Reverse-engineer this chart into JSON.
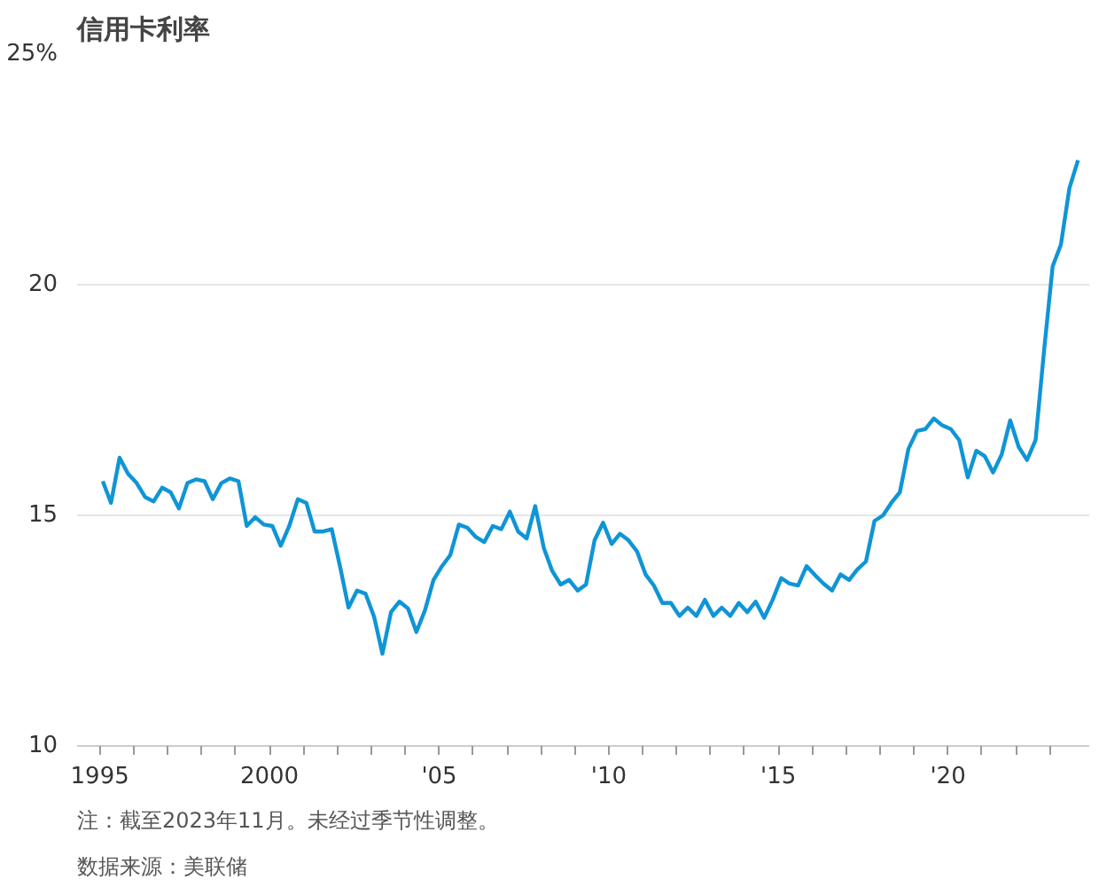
{
  "chart_data": {
    "type": "line",
    "title": "信用卡利率",
    "x": [
      "1995-02",
      "1995-05",
      "1995-08",
      "1995-11",
      "1996-02",
      "1996-05",
      "1996-08",
      "1996-11",
      "1997-02",
      "1997-05",
      "1997-08",
      "1997-11",
      "1998-02",
      "1998-05",
      "1998-08",
      "1998-11",
      "1999-02",
      "1999-05",
      "1999-08",
      "1999-11",
      "2000-02",
      "2000-05",
      "2000-08",
      "2000-11",
      "2001-02",
      "2001-05",
      "2001-08",
      "2001-11",
      "2002-02",
      "2002-05",
      "2002-08",
      "2002-11",
      "2003-02",
      "2003-05",
      "2003-08",
      "2003-11",
      "2004-02",
      "2004-05",
      "2004-08",
      "2004-11",
      "2005-02",
      "2005-05",
      "2005-08",
      "2005-11",
      "2006-02",
      "2006-05",
      "2006-08",
      "2006-11",
      "2007-02",
      "2007-05",
      "2007-08",
      "2007-11",
      "2008-02",
      "2008-05",
      "2008-08",
      "2008-11",
      "2009-02",
      "2009-05",
      "2009-08",
      "2009-11",
      "2010-02",
      "2010-05",
      "2010-08",
      "2010-11",
      "2011-02",
      "2011-05",
      "2011-08",
      "2011-11",
      "2012-02",
      "2012-05",
      "2012-08",
      "2012-11",
      "2013-02",
      "2013-05",
      "2013-08",
      "2013-11",
      "2014-02",
      "2014-05",
      "2014-08",
      "2014-11",
      "2015-02",
      "2015-05",
      "2015-08",
      "2015-11",
      "2016-02",
      "2016-05",
      "2016-08",
      "2016-11",
      "2017-02",
      "2017-05",
      "2017-08",
      "2017-11",
      "2018-02",
      "2018-05",
      "2018-08",
      "2018-11",
      "2019-02",
      "2019-05",
      "2019-08",
      "2019-11",
      "2020-02",
      "2020-05",
      "2020-08",
      "2020-11",
      "2021-02",
      "2021-05",
      "2021-08",
      "2021-11",
      "2022-02",
      "2022-05",
      "2022-08",
      "2022-11",
      "2023-02",
      "2023-05",
      "2023-08",
      "2023-11"
    ],
    "series": [
      {
        "color": "#0f95d6",
        "values": [
          15.74,
          15.27,
          16.25,
          15.9,
          15.7,
          15.4,
          15.3,
          15.6,
          15.5,
          15.15,
          15.7,
          15.78,
          15.74,
          15.35,
          15.7,
          15.8,
          15.74,
          14.77,
          14.96,
          14.8,
          14.77,
          14.34,
          14.77,
          15.35,
          15.27,
          14.65,
          14.65,
          14.7,
          13.87,
          13.0,
          13.37,
          13.3,
          12.8,
          12.0,
          12.9,
          13.13,
          12.98,
          12.47,
          12.94,
          13.6,
          13.9,
          14.14,
          14.8,
          14.73,
          14.53,
          14.42,
          14.77,
          14.7,
          15.08,
          14.65,
          14.5,
          15.2,
          14.3,
          13.8,
          13.5,
          13.6,
          13.37,
          13.5,
          14.46,
          14.84,
          14.38,
          14.6,
          14.46,
          14.22,
          13.72,
          13.48,
          13.1,
          13.1,
          12.82,
          13.0,
          12.82,
          13.17,
          12.82,
          13.0,
          12.82,
          13.1,
          12.9,
          13.13,
          12.78,
          13.17,
          13.64,
          13.52,
          13.48,
          13.9,
          13.7,
          13.52,
          13.37,
          13.72,
          13.6,
          13.83,
          14.0,
          14.88,
          15.0,
          15.27,
          15.5,
          16.44,
          16.83,
          16.87,
          17.1,
          16.95,
          16.87,
          16.63,
          15.82,
          16.4,
          16.28,
          15.93,
          16.32,
          17.06,
          16.48,
          16.2,
          16.63,
          18.58,
          20.4,
          20.87,
          22.1,
          22.7
        ]
      }
    ],
    "xlim": [
      "1994-05",
      "2024-03"
    ],
    "xticks": [
      {
        "value": "1995",
        "label": "1995"
      },
      {
        "value": "1996",
        "label": null
      },
      {
        "value": "1997",
        "label": null
      },
      {
        "value": "1998",
        "label": null
      },
      {
        "value": "1999",
        "label": null
      },
      {
        "value": "2000",
        "label": "2000"
      },
      {
        "value": "2001",
        "label": null
      },
      {
        "value": "2002",
        "label": null
      },
      {
        "value": "2003",
        "label": null
      },
      {
        "value": "2004",
        "label": null
      },
      {
        "value": "2005",
        "label": "'05"
      },
      {
        "value": "2006",
        "label": null
      },
      {
        "value": "2007",
        "label": null
      },
      {
        "value": "2008",
        "label": null
      },
      {
        "value": "2009",
        "label": null
      },
      {
        "value": "2010",
        "label": "'10"
      },
      {
        "value": "2011",
        "label": null
      },
      {
        "value": "2012",
        "label": null
      },
      {
        "value": "2013",
        "label": null
      },
      {
        "value": "2014",
        "label": null
      },
      {
        "value": "2015",
        "label": "'15"
      },
      {
        "value": "2016",
        "label": null
      },
      {
        "value": "2017",
        "label": null
      },
      {
        "value": "2018",
        "label": null
      },
      {
        "value": "2019",
        "label": null
      },
      {
        "value": "2020",
        "label": "'20"
      },
      {
        "value": "2021",
        "label": null
      },
      {
        "value": "2022",
        "label": null
      },
      {
        "value": "2023",
        "label": null
      }
    ],
    "ylim": [
      10,
      25
    ],
    "yticks": [
      10,
      15,
      20,
      {
        "value": 25,
        "label": "25%"
      }
    ],
    "grid": "y",
    "marker": "none",
    "line_style": "solid",
    "annotations": [
      "注：截至2023年11月。未经过季节性调整。",
      "数据来源：美联储"
    ]
  }
}
